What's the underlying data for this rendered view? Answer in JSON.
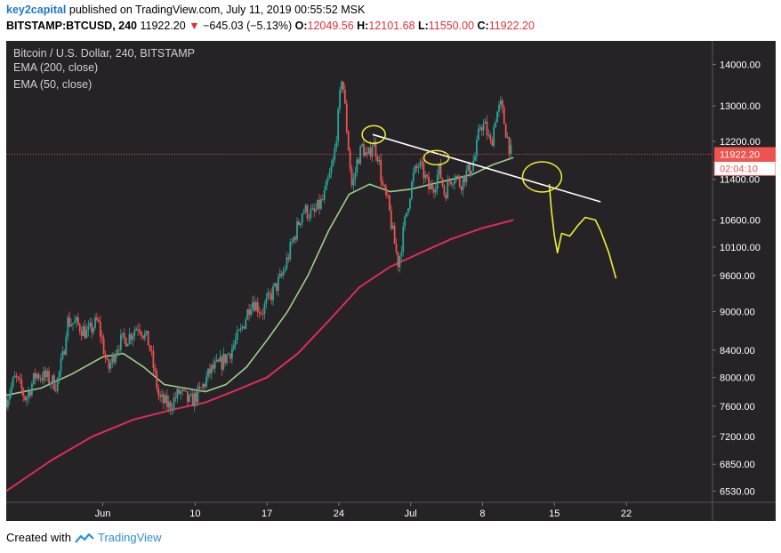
{
  "header": {
    "author": "key2capital",
    "published_text": "published on TradingView.com, July 11, 2019 00:55:52 MSK",
    "symbol": "BITSTAMP:BTCUSD, 240",
    "last": "11922.20",
    "change": "−645.03 (−5.13%)",
    "o_label": "O:",
    "o_value": "12049.56",
    "h_label": "H:",
    "h_value": "12101.68",
    "l_label": "L:",
    "l_value": "11550.00",
    "c_label": "C:",
    "c_value": "11922.20"
  },
  "footer": {
    "created_with": "Created with",
    "brand": "TradingView"
  },
  "colors": {
    "background": "#252326",
    "up": "#26a69a",
    "down": "#ef5350",
    "ema200": "#e02a5c",
    "ema50": "#9ed08b",
    "annotation_yellow": "#f2ee36",
    "trendline": "#ffffff",
    "axis_text": "#ffffff",
    "price_tag": "#ef5350"
  },
  "chart_data": {
    "type": "candlestick",
    "title": "Bitcoin / U.S. Dollar, 240, BITSTAMP",
    "legend": [
      "EMA (200, close)",
      "EMA (50, close)"
    ],
    "ylim": [
      6400,
      14600
    ],
    "y_scale": "log",
    "y_ticks": [
      "14000.00",
      "13000.00",
      "12200.00",
      "11400.00",
      "10600.00",
      "10100.00",
      "9600.00",
      "9000.00",
      "8400.00",
      "8000.00",
      "7600.00",
      "7200.00",
      "6850.00",
      "6530.00"
    ],
    "x_ticks": [
      {
        "label": "Jun",
        "day": 1
      },
      {
        "label": "10",
        "day": 10
      },
      {
        "label": "17",
        "day": 17
      },
      {
        "label": "24",
        "day": 24
      },
      {
        "label": "Jul",
        "day": 31
      },
      {
        "label": "8",
        "day": 38
      },
      {
        "label": "15",
        "day": 45
      },
      {
        "label": "22",
        "day": 52
      }
    ],
    "xlim": [
      -8.4,
      60.4
    ],
    "last_price": "11922.20",
    "countdown": "02:04:10",
    "price_path": [
      [
        -8.4,
        7700
      ],
      [
        -7.5,
        8000
      ],
      [
        -6.5,
        7700
      ],
      [
        -5.5,
        8050
      ],
      [
        -4.5,
        8000
      ],
      [
        -3.5,
        7900
      ],
      [
        -2.8,
        8350
      ],
      [
        -2.5,
        8850
      ],
      [
        -1.5,
        8800
      ],
      [
        -0.5,
        8650
      ],
      [
        0.5,
        8850
      ],
      [
        1.0,
        8500
      ],
      [
        1.5,
        8100
      ],
      [
        2.5,
        8500
      ],
      [
        3.5,
        8600
      ],
      [
        4.5,
        8800
      ],
      [
        5.5,
        8500
      ],
      [
        6.0,
        8100
      ],
      [
        6.5,
        7700
      ],
      [
        7.5,
        7600
      ],
      [
        8.5,
        7800
      ],
      [
        9.5,
        7650
      ],
      [
        10.5,
        7800
      ],
      [
        11.5,
        8100
      ],
      [
        12.5,
        8200
      ],
      [
        13.5,
        8400
      ],
      [
        14.5,
        8700
      ],
      [
        15.5,
        9200
      ],
      [
        16.5,
        9000
      ],
      [
        17.5,
        9300
      ],
      [
        18.5,
        9600
      ],
      [
        19.5,
        10200
      ],
      [
        20.5,
        10800
      ],
      [
        21.5,
        10700
      ],
      [
        22.5,
        11000
      ],
      [
        23.5,
        11800
      ],
      [
        24.0,
        12900
      ],
      [
        24.3,
        13800
      ],
      [
        24.8,
        12400
      ],
      [
        25.3,
        11200
      ],
      [
        25.8,
        11800
      ],
      [
        26.3,
        12100
      ],
      [
        26.8,
        11800
      ],
      [
        27.3,
        12200
      ],
      [
        27.8,
        11900
      ],
      [
        28.3,
        11200
      ],
      [
        28.8,
        10900
      ],
      [
        29.3,
        10300
      ],
      [
        29.8,
        9800
      ],
      [
        30.3,
        10400
      ],
      [
        30.8,
        11000
      ],
      [
        31.3,
        11500
      ],
      [
        31.8,
        11700
      ],
      [
        32.3,
        11500
      ],
      [
        32.8,
        11200
      ],
      [
        33.3,
        11300
      ],
      [
        33.8,
        11600
      ],
      [
        34.3,
        11100
      ],
      [
        34.8,
        11400
      ],
      [
        35.3,
        11500
      ],
      [
        35.8,
        11300
      ],
      [
        36.3,
        11500
      ],
      [
        36.8,
        11600
      ],
      [
        37.3,
        11900
      ],
      [
        37.8,
        12600
      ],
      [
        38.3,
        12500
      ],
      [
        38.8,
        12100
      ],
      [
        39.3,
        12800
      ],
      [
        39.8,
        13000
      ],
      [
        40.3,
        12400
      ],
      [
        40.8,
        11922
      ]
    ],
    "ema200": [
      [
        -8.4,
        6530
      ],
      [
        -4,
        6900
      ],
      [
        0,
        7200
      ],
      [
        4,
        7420
      ],
      [
        8,
        7560
      ],
      [
        11,
        7650
      ],
      [
        14,
        7820
      ],
      [
        17,
        8000
      ],
      [
        20,
        8350
      ],
      [
        23,
        8850
      ],
      [
        26,
        9400
      ],
      [
        29,
        9750
      ],
      [
        32,
        10000
      ],
      [
        35,
        10250
      ],
      [
        38,
        10450
      ],
      [
        41,
        10600
      ]
    ],
    "ema50": [
      [
        -8.4,
        7750
      ],
      [
        -5,
        7850
      ],
      [
        -2,
        8050
      ],
      [
        1,
        8300
      ],
      [
        3,
        8350
      ],
      [
        5,
        8150
      ],
      [
        7,
        7900
      ],
      [
        9,
        7850
      ],
      [
        11,
        7800
      ],
      [
        13,
        7900
      ],
      [
        15,
        8150
      ],
      [
        17,
        8550
      ],
      [
        19,
        9000
      ],
      [
        21,
        9600
      ],
      [
        23,
        10400
      ],
      [
        25,
        11100
      ],
      [
        27,
        11300
      ],
      [
        29,
        11150
      ],
      [
        31,
        11200
      ],
      [
        33,
        11300
      ],
      [
        35,
        11400
      ],
      [
        37,
        11500
      ],
      [
        39,
        11700
      ],
      [
        41,
        11850
      ]
    ],
    "annotations": {
      "trendline": [
        [
          27.3,
          12350
        ],
        [
          49.5,
          10950
        ]
      ],
      "ellipses": [
        {
          "day": 27.4,
          "price": 12350,
          "rx": 13,
          "ry": 10
        },
        {
          "day": 33.5,
          "price": 11850,
          "rx": 14,
          "ry": 8
        },
        {
          "day": 43.8,
          "price": 11450,
          "rx": 22,
          "ry": 17
        }
      ],
      "projection": [
        [
          44.5,
          11300
        ],
        [
          44.7,
          10800
        ],
        [
          45.0,
          10300
        ],
        [
          45.3,
          10000
        ],
        [
          45.7,
          10350
        ],
        [
          46.5,
          10300
        ],
        [
          47.3,
          10500
        ],
        [
          48.0,
          10650
        ],
        [
          49.0,
          10600
        ],
        [
          49.5,
          10400
        ],
        [
          50.3,
          10000
        ],
        [
          51.0,
          9550
        ]
      ]
    }
  }
}
